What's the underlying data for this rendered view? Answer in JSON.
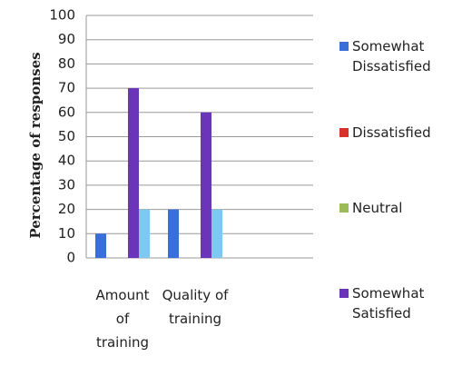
{
  "chart_data": {
    "type": "bar",
    "y_label": "Percentage of responses",
    "categories": [
      "Amount of training",
      "Quality of training"
    ],
    "series": [
      {
        "name": "Somewhat Dissatisfied",
        "color": "#3b6fd8",
        "values": [
          10,
          20
        ]
      },
      {
        "name": "Dissatisfied",
        "color": "#d8312a",
        "values": [
          0,
          0
        ]
      },
      {
        "name": "Neutral",
        "color": "#9bbb59",
        "values": [
          0,
          0
        ]
      },
      {
        "name": "Somewhat Satisfied",
        "color": "#6a35b8",
        "values": [
          70,
          60
        ]
      },
      {
        "name": null,
        "color": "#7fc8f0",
        "values": [
          20,
          20
        ]
      }
    ],
    "ylim": [
      0,
      100
    ],
    "yticks": [
      0,
      10,
      20,
      30,
      40,
      50,
      60,
      70,
      80,
      90,
      100
    ],
    "grid": true,
    "legend": "right"
  }
}
